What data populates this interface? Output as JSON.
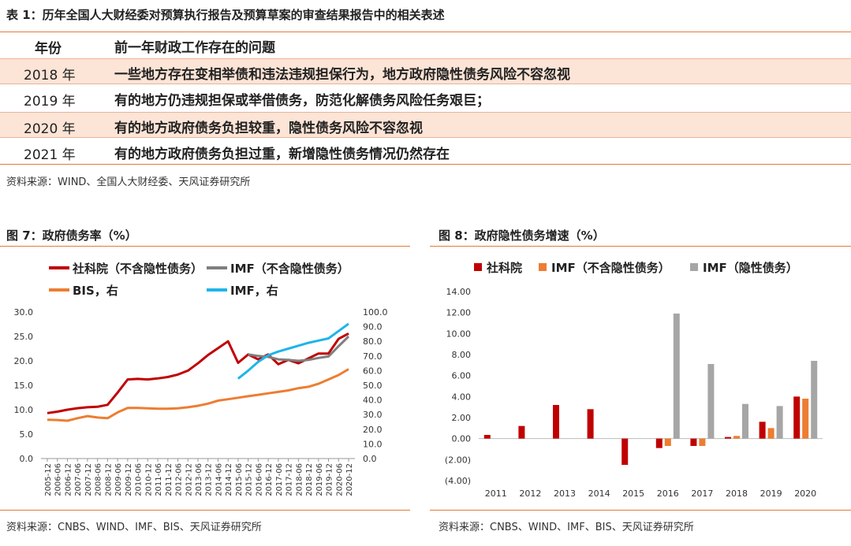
{
  "table": {
    "title": "表 1：历年全国人大财经委对预算执行报告及预算草案的审查结果报告中的相关表述",
    "header": {
      "year": "年份",
      "issue": "前一年财政工作存在的问题"
    },
    "rows": [
      {
        "year": "2018 年",
        "issue": "一些地方存在变相举债和违法违规担保行为，地方政府隐性债务风险不容忽视"
      },
      {
        "year": "2019 年",
        "issue": "有的地方仍违规担保或举借债务，防范化解债务风险任务艰巨；"
      },
      {
        "year": "2020 年",
        "issue": "有的地方政府债务负担较重，隐性债务风险不容忽视"
      },
      {
        "year": "2021 年",
        "issue": "有的地方政府债务负担过重，新增隐性债务情况仍然存在"
      }
    ],
    "source": "资料来源：WIND、全国人大财经委、天风证券研究所"
  },
  "fig7": {
    "title": "图 7：政府债务率（%）",
    "source": "资料来源：CNBS、WIND、IMF、BIS、天风证券研究所"
  },
  "fig8": {
    "title": "图 8：政府隐性债务增速（%）",
    "source": "资料来源：CNBS、WIND、IMF、BIS、天风证券研究所"
  },
  "colors": {
    "red": "#c00000",
    "gray": "#7f7f7f",
    "orange": "#ed7d31",
    "blue": "#1fb4ea",
    "lightgray": "#a6a6a6",
    "rule": "#e07b39"
  },
  "chart_data": [
    {
      "type": "line",
      "legend": [
        "社科院（不含隐性债务）",
        "IMF（不含隐性债务）",
        "BIS，右",
        "IMF，右"
      ],
      "x": [
        "2005-12",
        "2006-06",
        "2006-12",
        "2007-06",
        "2007-12",
        "2008-06",
        "2008-12",
        "2009-06",
        "2009-12",
        "2010-06",
        "2010-12",
        "2011-06",
        "2011-12",
        "2012-06",
        "2012-12",
        "2013-06",
        "2013-12",
        "2014-06",
        "2014-12",
        "2015-06",
        "2015-12",
        "2016-06",
        "2016-12",
        "2017-06",
        "2017-12",
        "2018-06",
        "2018-12",
        "2019-06",
        "2019-12",
        "2020-06",
        "2020-12"
      ],
      "ylim_left": [
        0,
        30
      ],
      "ylim_right": [
        0,
        100
      ],
      "yticks_left": [
        "0.0",
        "5.0",
        "10.0",
        "15.0",
        "20.0",
        "25.0",
        "30.0"
      ],
      "yticks_right": [
        "0.0",
        "10.0",
        "20.0",
        "30.0",
        "40.0",
        "50.0",
        "60.0",
        "70.0",
        "80.0",
        "90.0",
        "100.0"
      ],
      "series": [
        {
          "name": "社科院（不含隐性债务）",
          "axis": "left",
          "color": "#c00000",
          "points": [
            [
              0,
              9.3
            ],
            [
              1,
              9.6
            ],
            [
              2,
              10.0
            ],
            [
              3,
              10.3
            ],
            [
              4,
              10.5
            ],
            [
              5,
              10.6
            ],
            [
              6,
              11.0
            ],
            [
              7,
              13.5
            ],
            [
              8,
              16.2
            ],
            [
              9,
              16.3
            ],
            [
              10,
              16.2
            ],
            [
              11,
              16.4
            ],
            [
              12,
              16.7
            ],
            [
              13,
              17.2
            ],
            [
              14,
              18.0
            ],
            [
              15,
              19.5
            ],
            [
              16,
              21.2
            ],
            [
              17,
              22.6
            ],
            [
              18,
              24.0
            ],
            [
              19,
              19.6
            ],
            [
              20,
              21.3
            ],
            [
              21,
              20.3
            ],
            [
              22,
              21.3
            ],
            [
              23,
              19.3
            ],
            [
              24,
              20.2
            ],
            [
              25,
              19.5
            ],
            [
              26,
              20.5
            ],
            [
              27,
              21.5
            ],
            [
              28,
              21.5
            ],
            [
              29,
              24.5
            ],
            [
              30,
              25.6
            ]
          ]
        },
        {
          "name": "IMF（不含隐性债务）",
          "axis": "left",
          "color": "#7f7f7f",
          "points": [
            [
              20,
              21.3
            ],
            [
              21,
              21.0
            ],
            [
              22,
              20.8
            ],
            [
              23,
              20.3
            ],
            [
              24,
              20.2
            ],
            [
              25,
              20.0
            ],
            [
              26,
              20.2
            ],
            [
              27,
              20.6
            ],
            [
              28,
              20.9
            ],
            [
              29,
              23.0
            ],
            [
              30,
              25.0
            ]
          ]
        },
        {
          "name": "BIS，右",
          "axis": "right",
          "color": "#ed7d31",
          "points": [
            [
              0,
              26.5
            ],
            [
              1,
              26.3
            ],
            [
              2,
              25.8
            ],
            [
              3,
              27.5
            ],
            [
              4,
              29.0
            ],
            [
              5,
              28.0
            ],
            [
              6,
              27.5
            ],
            [
              7,
              31.5
            ],
            [
              8,
              34.5
            ],
            [
              9,
              34.5
            ],
            [
              10,
              34.3
            ],
            [
              11,
              34.0
            ],
            [
              12,
              34.0
            ],
            [
              13,
              34.3
            ],
            [
              14,
              35.0
            ],
            [
              15,
              36.0
            ],
            [
              16,
              37.5
            ],
            [
              17,
              39.5
            ],
            [
              18,
              40.5
            ],
            [
              19,
              41.5
            ],
            [
              20,
              42.5
            ],
            [
              21,
              43.5
            ],
            [
              22,
              44.5
            ],
            [
              23,
              45.5
            ],
            [
              24,
              46.5
            ],
            [
              25,
              48.0
            ],
            [
              26,
              49.0
            ],
            [
              27,
              51.0
            ],
            [
              28,
              54.0
            ],
            [
              29,
              57.0
            ],
            [
              30,
              61.0
            ]
          ]
        },
        {
          "name": "IMF，右",
          "axis": "right",
          "color": "#1fb4ea",
          "points": [
            [
              19,
              54.5
            ],
            [
              20,
              60.0
            ],
            [
              21,
              66.0
            ],
            [
              22,
              70.5
            ],
            [
              23,
              73.0
            ],
            [
              24,
              75.0
            ],
            [
              25,
              77.0
            ],
            [
              26,
              79.0
            ],
            [
              27,
              80.5
            ],
            [
              28,
              82.0
            ],
            [
              29,
              87.0
            ],
            [
              30,
              92.0
            ]
          ]
        }
      ]
    },
    {
      "type": "bar",
      "categories": [
        "2011",
        "2012",
        "2013",
        "2014",
        "2015",
        "2016",
        "2017",
        "2018",
        "2019",
        "2020"
      ],
      "ylim": [
        -4,
        14
      ],
      "yticks": [
        "(4.00)",
        "(2.00)",
        "0.00",
        "2.00",
        "4.00",
        "6.00",
        "8.00",
        "10.00",
        "12.00",
        "14.00"
      ],
      "series": [
        {
          "name": "社科院",
          "color": "#c00000",
          "values": [
            0.35,
            1.2,
            3.2,
            2.8,
            -2.5,
            -0.9,
            -0.7,
            0.15,
            1.6,
            4.0
          ]
        },
        {
          "name": "IMF（不含隐性债务）",
          "color": "#ed7d31",
          "values": [
            null,
            null,
            null,
            null,
            null,
            -0.7,
            -0.7,
            0.25,
            1.0,
            3.8
          ]
        },
        {
          "name": "IMF（隐性债务）",
          "color": "#a6a6a6",
          "values": [
            null,
            null,
            null,
            null,
            null,
            11.9,
            7.1,
            3.3,
            3.1,
            7.4
          ]
        }
      ]
    }
  ]
}
